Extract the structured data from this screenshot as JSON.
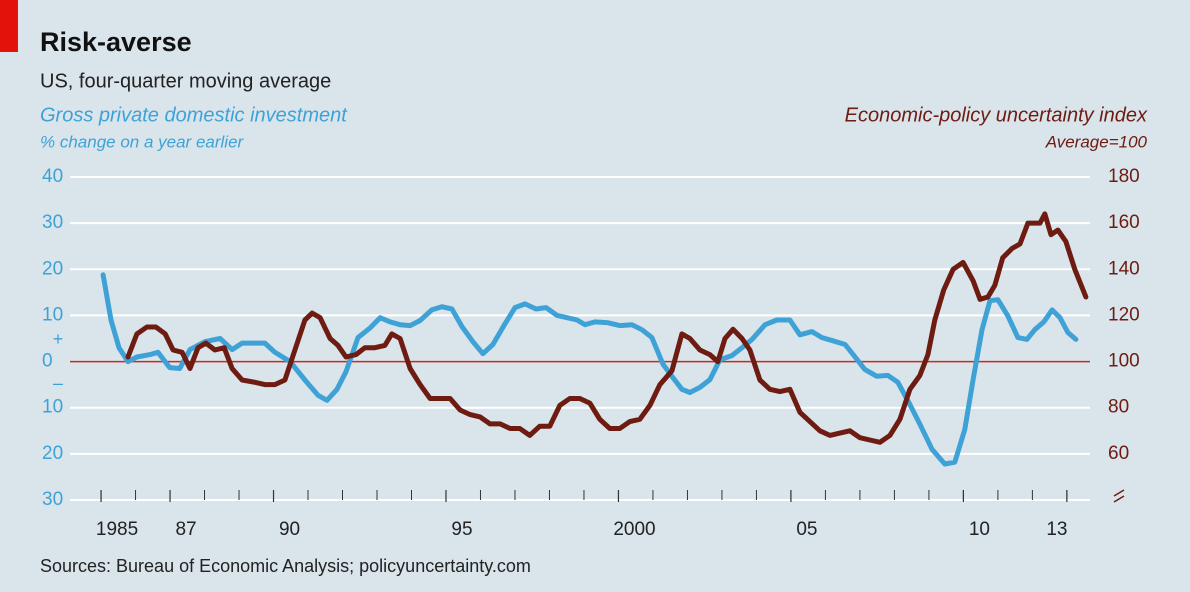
{
  "chart_data": {
    "type": "line",
    "title": "Risk-averse",
    "subtitle": "US, four-quarter moving average",
    "y_label": "Gross private domestic investment",
    "y_unit": "% change on a year earlier",
    "y2_label": "Economic-policy uncertainty index",
    "y2_unit": "Average=100",
    "sign_labels": [
      "+",
      "–"
    ],
    "source": "Sources: Bureau of Economic Analysis; policyuncertainty.com",
    "xlim": [
      1984.1,
      2013.67
    ],
    "xticks": [
      {
        "value": 1985,
        "label": "1985"
      },
      {
        "value": 1987,
        "label": "87"
      },
      {
        "value": 1990,
        "label": "90"
      },
      {
        "value": 1995,
        "label": "95"
      },
      {
        "value": 2000,
        "label": "2000"
      },
      {
        "value": 2005,
        "label": "05"
      },
      {
        "value": 2010,
        "label": "10"
      },
      {
        "value": 2013,
        "label": "13"
      }
    ],
    "ylim": [
      -30,
      40
    ],
    "yticks": [
      {
        "value": -30,
        "label": "30"
      },
      {
        "value": -20,
        "label": "20"
      },
      {
        "value": -10,
        "label": "10"
      },
      0,
      10,
      20,
      30,
      40
    ],
    "y2lim": [
      40,
      180
    ],
    "y2ticks": [
      60,
      80,
      100,
      120,
      140,
      160,
      180
    ],
    "grid": true,
    "series": [
      {
        "name": "Gross private domestic investment",
        "color": "#3fa2d6",
        "x": [
          1985.06,
          1985.29,
          1985.52,
          1985.78,
          1986.04,
          1986.42,
          1986.65,
          1986.99,
          1987.28,
          1987.58,
          1988.01,
          1988.45,
          1988.8,
          1989.09,
          1989.46,
          1989.75,
          1990.04,
          1990.48,
          1990.91,
          1991.29,
          1991.55,
          1991.84,
          1992.1,
          1992.45,
          1992.8,
          1993.09,
          1993.38,
          1993.67,
          1993.96,
          1994.25,
          1994.59,
          1994.88,
          1995.17,
          1995.46,
          1995.78,
          1996.07,
          1996.36,
          1996.68,
          1997.0,
          1997.29,
          1997.61,
          1997.9,
          1998.22,
          1998.51,
          1998.8,
          1999.03,
          1999.32,
          1999.7,
          2000.04,
          2000.39,
          2000.68,
          2000.97,
          2001.29,
          2001.58,
          2001.84,
          2002.07,
          2002.36,
          2002.65,
          2002.94,
          2003.29,
          2003.58,
          2003.87,
          2004.25,
          2004.59,
          2004.97,
          2005.26,
          2005.61,
          2005.9,
          2006.22,
          2006.57,
          2006.86,
          2007.14,
          2007.49,
          2007.81,
          2008.1,
          2008.45,
          2008.74,
          2009.09,
          2009.46,
          2009.75,
          2010.04,
          2010.28,
          2010.54,
          2010.77,
          2011.0,
          2011.29,
          2011.58,
          2011.84,
          2012.07,
          2012.33,
          2012.57,
          2012.8,
          2013.03,
          2013.26
        ],
        "values": [
          18.8,
          9,
          3,
          0,
          1,
          1.5,
          2,
          -1.3,
          -1.5,
          2.6,
          4.3,
          5,
          2.6,
          4,
          4,
          4,
          2,
          0,
          -4,
          -7.3,
          -8.4,
          -6,
          -2.2,
          5.2,
          7.3,
          9.5,
          8.6,
          8,
          7.8,
          8.9,
          11.2,
          11.9,
          11.4,
          7.6,
          4.3,
          1.7,
          3.7,
          7.8,
          11.7,
          12.5,
          11.4,
          11.7,
          10,
          9.5,
          9,
          8,
          8.6,
          8.4,
          7.8,
          8,
          6.9,
          5.2,
          -0.6,
          -3.5,
          -6,
          -6.7,
          -5.6,
          -3.9,
          0.4,
          1.3,
          3,
          4.8,
          8,
          9,
          9,
          5.8,
          6.5,
          5.2,
          4.5,
          3.7,
          1,
          -1.7,
          -3.2,
          -3,
          -4.5,
          -9.3,
          -13.6,
          -19,
          -22.2,
          -21.8,
          -14.7,
          -3.9,
          6.9,
          13.2,
          13.4,
          9.9,
          5.2,
          4.8,
          6.9,
          8.6,
          11.2,
          9.5,
          6.3,
          4.8
        ]
      },
      {
        "name": "Economic-policy uncertainty index",
        "color": "#6e1c12",
        "axis": "y2",
        "x": [
          1985.78,
          1986.04,
          1986.33,
          1986.59,
          1986.86,
          1987.09,
          1987.35,
          1987.58,
          1987.81,
          1988.04,
          1988.3,
          1988.57,
          1988.8,
          1989.09,
          1989.46,
          1989.75,
          1990.04,
          1990.33,
          1990.62,
          1990.91,
          1991.12,
          1991.35,
          1991.64,
          1991.87,
          1992.1,
          1992.39,
          1992.65,
          1992.94,
          1993.23,
          1993.43,
          1993.67,
          1993.96,
          1994.25,
          1994.54,
          1994.83,
          1995.12,
          1995.41,
          1995.7,
          1995.99,
          1996.28,
          1996.57,
          1996.86,
          1997.14,
          1997.43,
          1997.72,
          1998.01,
          1998.3,
          1998.59,
          1998.88,
          1999.17,
          1999.46,
          1999.75,
          2000.04,
          2000.33,
          2000.62,
          2000.91,
          2001.2,
          2001.55,
          2001.84,
          2002.07,
          2002.36,
          2002.65,
          2002.88,
          2003.09,
          2003.32,
          2003.58,
          2003.81,
          2004.1,
          2004.39,
          2004.68,
          2004.97,
          2005.26,
          2005.55,
          2005.84,
          2006.13,
          2006.42,
          2006.71,
          2007.0,
          2007.29,
          2007.58,
          2007.87,
          2008.16,
          2008.45,
          2008.74,
          2008.97,
          2009.17,
          2009.43,
          2009.7,
          2009.99,
          2010.28,
          2010.48,
          2010.71,
          2010.91,
          2011.14,
          2011.41,
          2011.64,
          2011.87,
          2012.1,
          2012.22,
          2012.36,
          2012.54,
          2012.74,
          2012.97,
          2013.23,
          2013.55
        ],
        "values": [
          102,
          112,
          115,
          115,
          112,
          105,
          104,
          97,
          106,
          108,
          105,
          106,
          97,
          92,
          91,
          90,
          90,
          92,
          105,
          118,
          121,
          119,
          110,
          107,
          102,
          103,
          106,
          106,
          107,
          112,
          110,
          97,
          90,
          84,
          84,
          84,
          79,
          77,
          76,
          73,
          73,
          71,
          71,
          68,
          72,
          72,
          81,
          84,
          84,
          82,
          75,
          71,
          71,
          74,
          75,
          81,
          90,
          96,
          112,
          110,
          105,
          103,
          100,
          110,
          114,
          110,
          105,
          92,
          88,
          87,
          88,
          78,
          74,
          70,
          68,
          69,
          70,
          67,
          66,
          65,
          68,
          75,
          88,
          94,
          103,
          118,
          131,
          140,
          143,
          135,
          127,
          128,
          133,
          145,
          149,
          151,
          160,
          160,
          160,
          164,
          155,
          157,
          152,
          140,
          128
        ]
      }
    ]
  }
}
